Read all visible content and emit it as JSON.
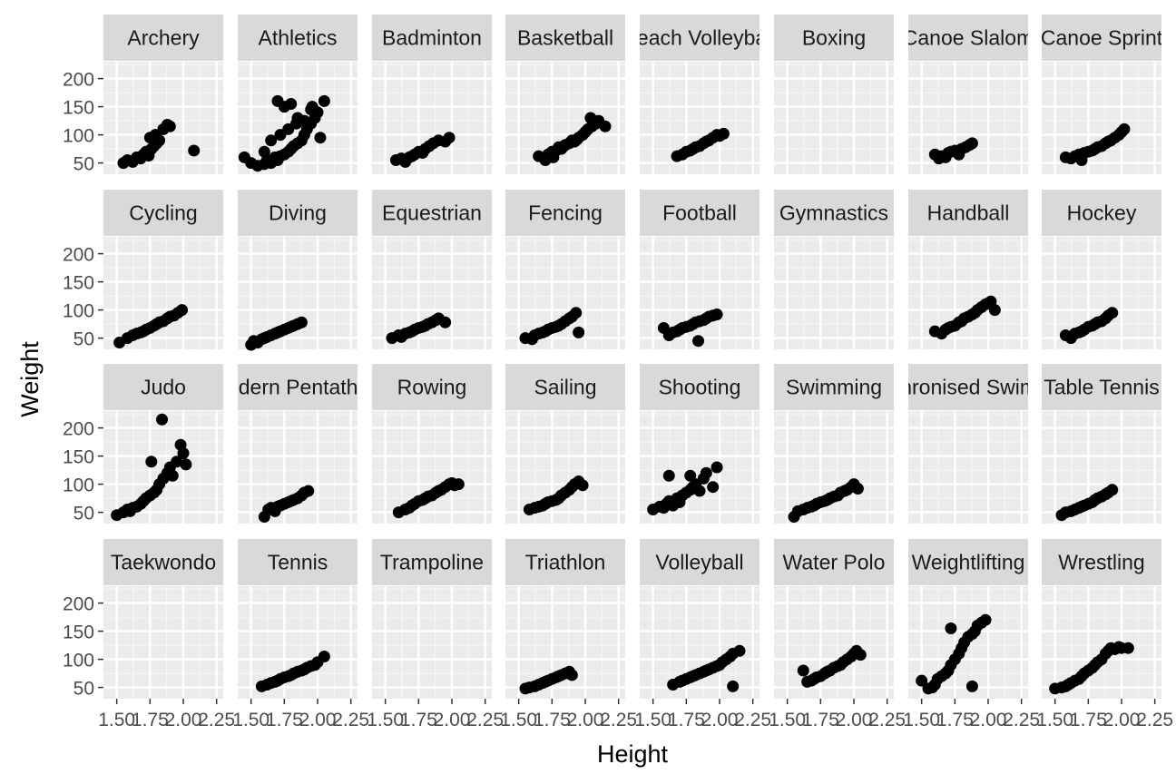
{
  "chart_data": {
    "type": "scatter",
    "faceted": true,
    "facet_layout": {
      "rows": 4,
      "cols": 8
    },
    "xlabel": "Height",
    "ylabel": "Weight",
    "xlim": [
      1.4,
      2.3
    ],
    "ylim": [
      30,
      230
    ],
    "x_ticks": [
      1.5,
      1.75,
      2.0,
      2.25
    ],
    "x_tick_labels": [
      "1.50",
      "1.75",
      "2.00",
      "2.25"
    ],
    "y_ticks": [
      50,
      100,
      150,
      200
    ],
    "y_tick_labels": [
      "50",
      "100",
      "150",
      "200"
    ],
    "grid": true,
    "panel_background": "#EBEBEB",
    "strip_background": "#D9D9D9",
    "point_color": "#000000",
    "facets": [
      {
        "label": "Archery",
        "x": [
          1.55,
          1.58,
          1.62,
          1.65,
          1.68,
          1.7,
          1.72,
          1.74,
          1.76,
          1.78,
          1.8,
          1.82,
          1.85,
          1.88,
          1.75,
          1.79,
          1.9,
          2.08
        ],
        "y": [
          50,
          55,
          52,
          60,
          58,
          65,
          70,
          63,
          75,
          80,
          85,
          90,
          110,
          118,
          95,
          100,
          115,
          72
        ]
      },
      {
        "label": "Athletics",
        "x": [
          1.45,
          1.5,
          1.55,
          1.6,
          1.62,
          1.65,
          1.68,
          1.7,
          1.72,
          1.75,
          1.78,
          1.8,
          1.82,
          1.85,
          1.88,
          1.9,
          1.92,
          1.95,
          1.98,
          2.0,
          2.05,
          1.7,
          1.75,
          1.8,
          1.85,
          1.9,
          1.95,
          1.6,
          1.65,
          1.72,
          1.78,
          1.84,
          1.96,
          2.02
        ],
        "y": [
          60,
          50,
          45,
          48,
          55,
          50,
          60,
          55,
          62,
          65,
          70,
          75,
          80,
          85,
          90,
          100,
          110,
          120,
          130,
          140,
          160,
          160,
          150,
          155,
          130,
          125,
          145,
          70,
          90,
          100,
          110,
          120,
          150,
          95
        ]
      },
      {
        "label": "Badminton",
        "x": [
          1.58,
          1.62,
          1.65,
          1.68,
          1.7,
          1.72,
          1.75,
          1.78,
          1.8,
          1.83,
          1.86,
          1.9,
          1.95,
          1.98
        ],
        "y": [
          55,
          58,
          52,
          60,
          62,
          65,
          70,
          68,
          75,
          80,
          85,
          90,
          88,
          95
        ]
      },
      {
        "label": "Basketball",
        "x": [
          1.65,
          1.7,
          1.72,
          1.75,
          1.78,
          1.8,
          1.82,
          1.85,
          1.88,
          1.9,
          1.92,
          1.95,
          1.98,
          2.0,
          2.02,
          2.05,
          2.08,
          2.1,
          2.15,
          1.76,
          1.84,
          1.94,
          2.04
        ],
        "y": [
          62,
          55,
          65,
          70,
          72,
          78,
          75,
          82,
          85,
          90,
          88,
          95,
          100,
          105,
          110,
          115,
          120,
          125,
          115,
          60,
          80,
          92,
          130
        ]
      },
      {
        "label": "Beach Volleyball",
        "x": [
          1.68,
          1.72,
          1.75,
          1.78,
          1.8,
          1.82,
          1.85,
          1.88,
          1.9,
          1.92,
          1.95,
          1.98,
          2.0,
          2.03
        ],
        "y": [
          62,
          65,
          70,
          72,
          75,
          78,
          80,
          85,
          88,
          90,
          95,
          100,
          98,
          102
        ]
      },
      {
        "label": "Boxing",
        "x": [],
        "y": []
      },
      {
        "label": "Canoe Slalom",
        "x": [
          1.6,
          1.63,
          1.65,
          1.68,
          1.7,
          1.72,
          1.75,
          1.78,
          1.8,
          1.83,
          1.86,
          1.88
        ],
        "y": [
          65,
          58,
          62,
          60,
          68,
          70,
          72,
          65,
          75,
          78,
          82,
          85
        ]
      },
      {
        "label": "Canoe Sprint",
        "x": [
          1.58,
          1.62,
          1.65,
          1.68,
          1.7,
          1.72,
          1.75,
          1.78,
          1.8,
          1.82,
          1.85,
          1.88,
          1.9,
          1.92,
          1.95,
          1.98,
          2.0,
          2.02
        ],
        "y": [
          60,
          58,
          62,
          65,
          55,
          68,
          70,
          72,
          75,
          78,
          80,
          85,
          88,
          90,
          95,
          100,
          105,
          110
        ]
      },
      {
        "label": "Cycling",
        "x": [
          1.52,
          1.58,
          1.62,
          1.65,
          1.68,
          1.7,
          1.72,
          1.75,
          1.78,
          1.8,
          1.82,
          1.85,
          1.88,
          1.9,
          1.93,
          1.96,
          1.99
        ],
        "y": [
          42,
          50,
          55,
          58,
          60,
          62,
          65,
          68,
          72,
          75,
          78,
          80,
          85,
          88,
          90,
          95,
          100
        ]
      },
      {
        "label": "Diving",
        "x": [
          1.5,
          1.52,
          1.55,
          1.58,
          1.6,
          1.62,
          1.65,
          1.68,
          1.7,
          1.72,
          1.75,
          1.78,
          1.8,
          1.82,
          1.85,
          1.88
        ],
        "y": [
          38,
          45,
          42,
          48,
          50,
          52,
          55,
          58,
          60,
          62,
          65,
          68,
          70,
          72,
          75,
          78
        ]
      },
      {
        "label": "Equestrian",
        "x": [
          1.55,
          1.6,
          1.62,
          1.65,
          1.68,
          1.7,
          1.72,
          1.75,
          1.78,
          1.8,
          1.82,
          1.85,
          1.88,
          1.9,
          1.95
        ],
        "y": [
          50,
          55,
          52,
          58,
          60,
          62,
          65,
          68,
          70,
          72,
          75,
          78,
          82,
          85,
          78
        ]
      },
      {
        "label": "Fencing",
        "x": [
          1.55,
          1.6,
          1.62,
          1.65,
          1.68,
          1.7,
          1.72,
          1.75,
          1.78,
          1.8,
          1.82,
          1.85,
          1.88,
          1.9,
          1.93,
          1.95
        ],
        "y": [
          50,
          48,
          55,
          58,
          60,
          62,
          65,
          68,
          70,
          72,
          75,
          80,
          85,
          88,
          95,
          60
        ]
      },
      {
        "label": "Football",
        "x": [
          1.58,
          1.62,
          1.65,
          1.68,
          1.7,
          1.72,
          1.75,
          1.78,
          1.8,
          1.82,
          1.85,
          1.88,
          1.9,
          1.92,
          1.95,
          1.98,
          1.84
        ],
        "y": [
          68,
          55,
          60,
          62,
          65,
          68,
          70,
          72,
          75,
          78,
          80,
          82,
          85,
          88,
          90,
          92,
          45
        ]
      },
      {
        "label": "Gymnastics",
        "x": [],
        "y": []
      },
      {
        "label": "Handball",
        "x": [
          1.6,
          1.65,
          1.68,
          1.7,
          1.72,
          1.75,
          1.78,
          1.8,
          1.82,
          1.85,
          1.88,
          1.9,
          1.92,
          1.95,
          1.98,
          2.0,
          2.02,
          2.05
        ],
        "y": [
          62,
          58,
          65,
          68,
          70,
          72,
          78,
          80,
          85,
          88,
          92,
          95,
          100,
          105,
          110,
          112,
          115,
          100
        ]
      },
      {
        "label": "Hockey",
        "x": [
          1.58,
          1.62,
          1.65,
          1.68,
          1.7,
          1.72,
          1.75,
          1.78,
          1.8,
          1.82,
          1.85,
          1.88,
          1.9,
          1.93
        ],
        "y": [
          55,
          50,
          58,
          60,
          62,
          65,
          70,
          72,
          75,
          78,
          80,
          85,
          90,
          95
        ]
      },
      {
        "label": "Judo",
        "x": [
          1.5,
          1.55,
          1.58,
          1.6,
          1.62,
          1.65,
          1.68,
          1.7,
          1.72,
          1.75,
          1.78,
          1.8,
          1.82,
          1.85,
          1.88,
          1.9,
          1.92,
          1.95,
          1.98,
          2.0,
          2.02,
          1.76,
          1.84
        ],
        "y": [
          45,
          50,
          55,
          52,
          58,
          60,
          65,
          70,
          75,
          80,
          85,
          90,
          100,
          110,
          120,
          130,
          115,
          140,
          170,
          155,
          135,
          140,
          215
        ]
      },
      {
        "label": "Modern Pentathlon",
        "x": [
          1.6,
          1.63,
          1.65,
          1.68,
          1.7,
          1.72,
          1.75,
          1.78,
          1.8,
          1.82,
          1.85,
          1.88,
          1.9,
          1.93
        ],
        "y": [
          42,
          55,
          58,
          52,
          60,
          62,
          65,
          68,
          70,
          72,
          75,
          80,
          85,
          88
        ]
      },
      {
        "label": "Rowing",
        "x": [
          1.6,
          1.65,
          1.68,
          1.7,
          1.72,
          1.75,
          1.78,
          1.8,
          1.82,
          1.85,
          1.88,
          1.9,
          1.92,
          1.95,
          1.98,
          2.0,
          2.02,
          2.05
        ],
        "y": [
          50,
          55,
          58,
          62,
          65,
          70,
          72,
          75,
          78,
          80,
          85,
          88,
          90,
          95,
          100,
          102,
          98,
          100
        ]
      },
      {
        "label": "Sailing",
        "x": [
          1.58,
          1.62,
          1.65,
          1.68,
          1.7,
          1.72,
          1.75,
          1.78,
          1.8,
          1.82,
          1.85,
          1.88,
          1.9,
          1.92,
          1.95,
          1.98
        ],
        "y": [
          55,
          58,
          60,
          62,
          65,
          68,
          70,
          72,
          75,
          80,
          85,
          90,
          95,
          100,
          105,
          98
        ]
      },
      {
        "label": "Shooting",
        "x": [
          1.5,
          1.55,
          1.58,
          1.6,
          1.62,
          1.65,
          1.68,
          1.7,
          1.72,
          1.75,
          1.78,
          1.8,
          1.82,
          1.85,
          1.88,
          1.9,
          1.95,
          1.98,
          1.62,
          1.78
        ],
        "y": [
          55,
          60,
          58,
          65,
          70,
          62,
          75,
          68,
          80,
          85,
          90,
          95,
          100,
          88,
          110,
          120,
          95,
          130,
          115,
          115
        ]
      },
      {
        "label": "Swimming",
        "x": [
          1.55,
          1.58,
          1.62,
          1.65,
          1.68,
          1.7,
          1.72,
          1.75,
          1.78,
          1.8,
          1.82,
          1.85,
          1.88,
          1.9,
          1.93,
          1.95,
          1.98,
          2.0,
          2.03
        ],
        "y": [
          42,
          52,
          55,
          58,
          60,
          62,
          65,
          68,
          70,
          72,
          75,
          78,
          80,
          85,
          88,
          90,
          95,
          100,
          92
        ]
      },
      {
        "label": "Synchronised Swimming",
        "x": [],
        "y": []
      },
      {
        "label": "Table Tennis",
        "x": [
          1.55,
          1.58,
          1.62,
          1.65,
          1.68,
          1.7,
          1.72,
          1.75,
          1.78,
          1.8,
          1.82,
          1.85,
          1.88,
          1.9,
          1.93
        ],
        "y": [
          45,
          50,
          52,
          55,
          58,
          60,
          62,
          65,
          68,
          72,
          75,
          78,
          82,
          85,
          90
        ]
      },
      {
        "label": "Taekwondo",
        "x": [],
        "y": []
      },
      {
        "label": "Tennis",
        "x": [
          1.58,
          1.62,
          1.65,
          1.68,
          1.7,
          1.72,
          1.75,
          1.78,
          1.8,
          1.82,
          1.85,
          1.88,
          1.9,
          1.92,
          1.95,
          1.98,
          2.0,
          2.05
        ],
        "y": [
          52,
          55,
          58,
          60,
          62,
          65,
          68,
          70,
          72,
          75,
          78,
          80,
          82,
          85,
          88,
          90,
          95,
          105
        ]
      },
      {
        "label": "Trampoline",
        "x": [],
        "y": []
      },
      {
        "label": "Triathlon",
        "x": [
          1.55,
          1.58,
          1.62,
          1.65,
          1.68,
          1.7,
          1.72,
          1.75,
          1.78,
          1.8,
          1.82,
          1.85,
          1.88,
          1.9
        ],
        "y": [
          48,
          50,
          52,
          55,
          58,
          60,
          62,
          65,
          68,
          70,
          72,
          75,
          78,
          72
        ]
      },
      {
        "label": "Volleyball",
        "x": [
          1.65,
          1.7,
          1.72,
          1.75,
          1.78,
          1.8,
          1.82,
          1.85,
          1.88,
          1.9,
          1.92,
          1.95,
          1.98,
          2.0,
          2.02,
          2.05,
          2.08,
          2.1,
          2.15,
          2.1
        ],
        "y": [
          55,
          60,
          62,
          65,
          68,
          70,
          72,
          75,
          78,
          80,
          82,
          85,
          88,
          90,
          95,
          100,
          105,
          110,
          115,
          52
        ]
      },
      {
        "label": "Water Polo",
        "x": [
          1.62,
          1.65,
          1.68,
          1.7,
          1.72,
          1.75,
          1.78,
          1.8,
          1.82,
          1.85,
          1.88,
          1.9,
          1.92,
          1.95,
          1.98,
          2.0,
          2.02,
          2.05
        ],
        "y": [
          80,
          60,
          62,
          65,
          68,
          70,
          75,
          78,
          80,
          85,
          88,
          90,
          95,
          100,
          105,
          110,
          115,
          108
        ]
      },
      {
        "label": "Weightlifting",
        "x": [
          1.5,
          1.55,
          1.58,
          1.6,
          1.62,
          1.65,
          1.68,
          1.7,
          1.72,
          1.75,
          1.78,
          1.8,
          1.82,
          1.85,
          1.88,
          1.9,
          1.92,
          1.95,
          1.98,
          1.72,
          1.88
        ],
        "y": [
          62,
          48,
          50,
          55,
          65,
          70,
          75,
          80,
          90,
          100,
          110,
          120,
          130,
          140,
          145,
          150,
          160,
          165,
          170,
          155,
          52
        ]
      },
      {
        "label": "Wrestling",
        "x": [
          1.5,
          1.55,
          1.58,
          1.6,
          1.62,
          1.65,
          1.68,
          1.7,
          1.72,
          1.75,
          1.78,
          1.8,
          1.82,
          1.85,
          1.88,
          1.9,
          1.92,
          1.95,
          1.98,
          2.0,
          2.05
        ],
        "y": [
          48,
          50,
          52,
          55,
          58,
          62,
          65,
          70,
          75,
          80,
          85,
          90,
          95,
          100,
          110,
          115,
          120,
          118,
          122,
          120,
          120
        ]
      }
    ]
  }
}
